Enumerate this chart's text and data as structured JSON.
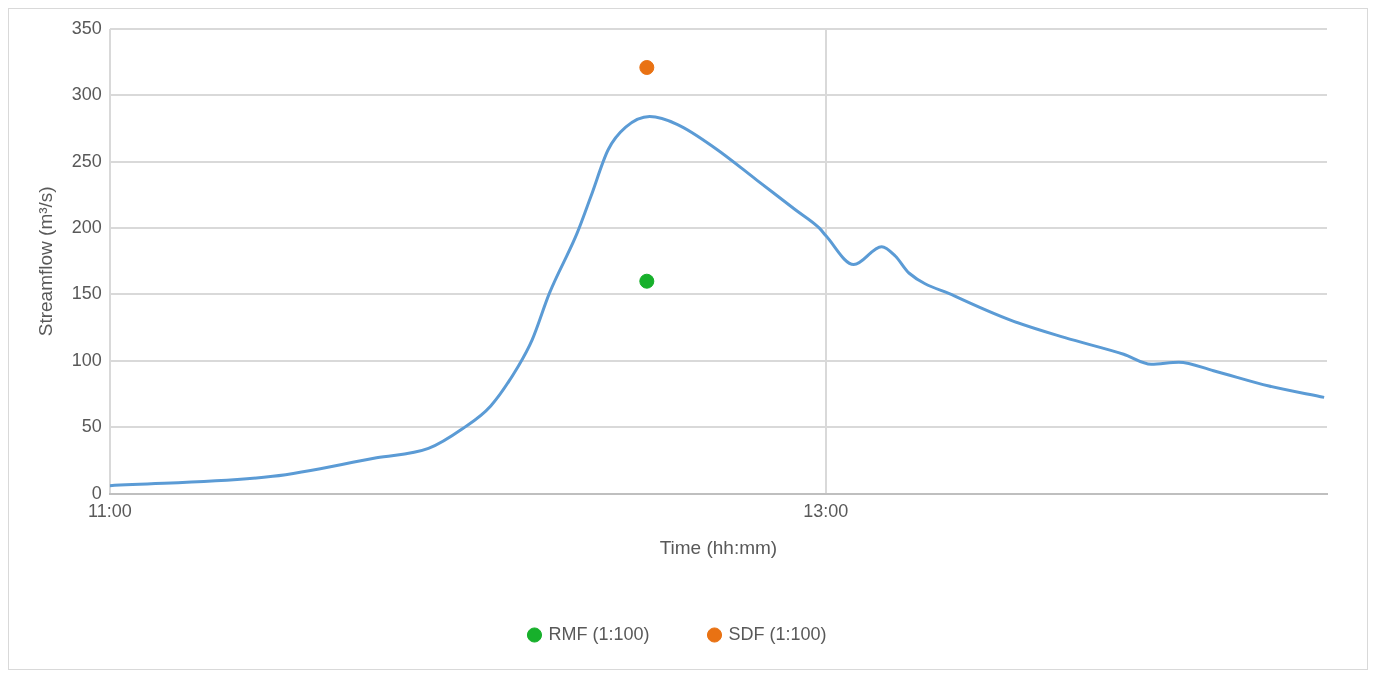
{
  "chart_data": {
    "type": "line",
    "xlabel": "Time (hh:mm)",
    "ylabel": "Streamflow (m³/s)",
    "xlim": [
      11,
      14.4
    ],
    "xticks": [
      {
        "value": 11,
        "label": "11:00"
      },
      {
        "value": 13,
        "label": "13:00"
      }
    ],
    "ylim": [
      0,
      350
    ],
    "yticks": [
      0,
      50,
      100,
      150,
      200,
      250,
      300,
      350
    ],
    "grid": true,
    "legend": "bottom",
    "series": [
      {
        "color": "#5b9bd5",
        "marker": "none",
        "line_style": "solid",
        "x": [
          11.0,
          11.455,
          11.745,
          11.89,
          11.986,
          12.064,
          12.141,
          12.18,
          12.228,
          12.305,
          12.344,
          12.392,
          12.441,
          12.508,
          12.586,
          12.692,
          12.808,
          12.914,
          12.982,
          13.001,
          13.078,
          13.156,
          13.194,
          13.233,
          13.359,
          13.523,
          13.668,
          13.832,
          13.909,
          13.986,
          14.083,
          14.238,
          14.392
        ],
        "values": [
          6,
          13,
          27,
          34,
          49,
          66,
          96,
          116,
          151,
          196,
          224,
          259,
          276,
          284,
          278,
          260,
          236,
          214,
          200,
          194,
          172.5,
          186,
          179,
          166,
          149,
          130,
          117.5,
          105,
          97.5,
          99,
          92.5,
          81,
          72.5
        ]
      },
      {
        "type": "scatter",
        "name": "RMF (1:100)",
        "color": "#17b02b",
        "marker": "circle",
        "x": [
          12.5
        ],
        "values": [
          160
        ]
      },
      {
        "type": "scatter",
        "name": "SDF (1:100)",
        "color": "#e97213",
        "marker": "circle",
        "x": [
          12.5
        ],
        "values": [
          321
        ]
      }
    ]
  }
}
